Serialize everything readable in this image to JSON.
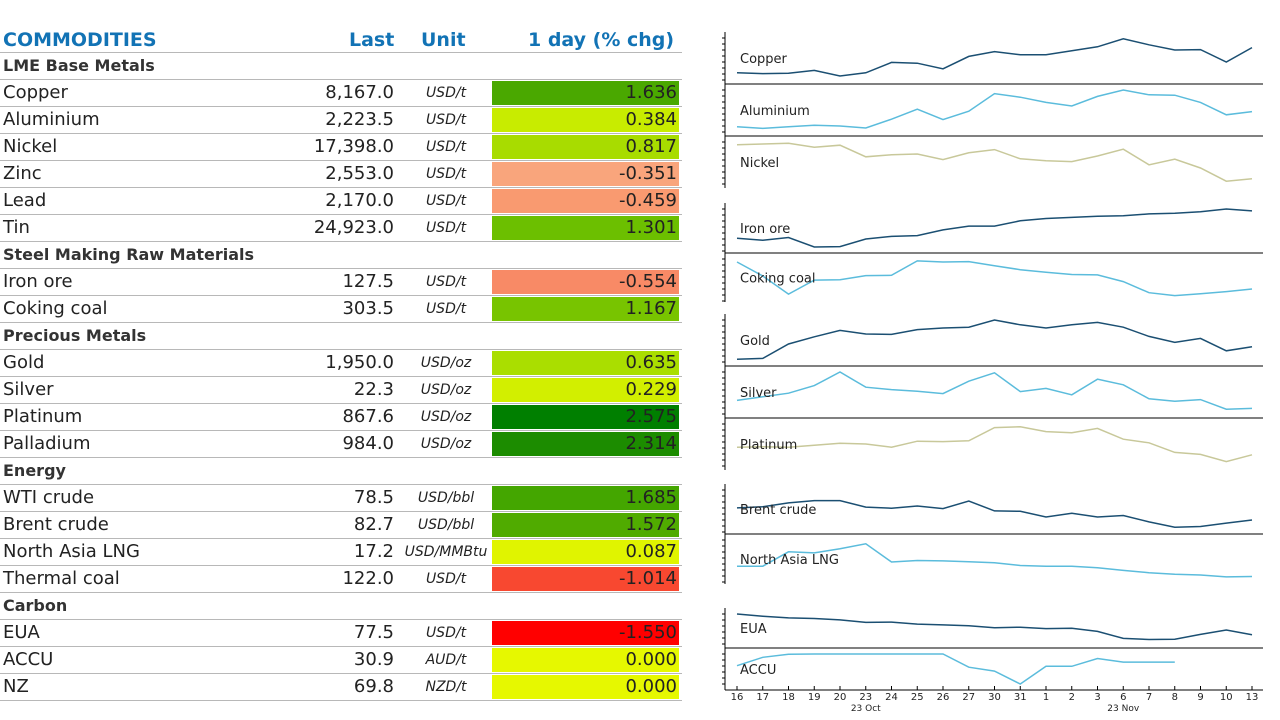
{
  "header": {
    "title": "COMMODITIES",
    "col_last": "Last",
    "col_unit": "Unit",
    "col_chg": "1 day (% chg)"
  },
  "sections": [
    {
      "title": "LME Base Metals",
      "rows": [
        {
          "name": "Copper",
          "last": "8,167.0",
          "unit": "USD/t",
          "chg": "1.636",
          "color": "#4aa800"
        },
        {
          "name": "Aluminium",
          "last": "2,223.5",
          "unit": "USD/t",
          "chg": "0.384",
          "color": "#c8ec00"
        },
        {
          "name": "Nickel",
          "last": "17,398.0",
          "unit": "USD/t",
          "chg": "0.817",
          "color": "#a8dc00"
        },
        {
          "name": "Zinc",
          "last": "2,553.0",
          "unit": "USD/t",
          "chg": "-0.351",
          "color": "#f9a57c"
        },
        {
          "name": "Lead",
          "last": "2,170.0",
          "unit": "USD/t",
          "chg": "-0.459",
          "color": "#f99a70"
        },
        {
          "name": "Tin",
          "last": "24,923.0",
          "unit": "USD/t",
          "chg": "1.301",
          "color": "#6cbf00"
        }
      ]
    },
    {
      "title": "Steel Making Raw Materials",
      "rows": [
        {
          "name": "Iron ore",
          "last": "127.5",
          "unit": "USD/t",
          "chg": "-0.554",
          "color": "#f88a66"
        },
        {
          "name": "Coking coal",
          "last": "303.5",
          "unit": "USD/t",
          "chg": "1.167",
          "color": "#78c400"
        }
      ]
    },
    {
      "title": "Precious Metals",
      "rows": [
        {
          "name": "Gold",
          "last": "1,950.0",
          "unit": "USD/oz",
          "chg": "0.635",
          "color": "#aade00"
        },
        {
          "name": "Silver",
          "last": "22.3",
          "unit": "USD/oz",
          "chg": "0.229",
          "color": "#d2ef00"
        },
        {
          "name": "Platinum",
          "last": "867.6",
          "unit": "USD/oz",
          "chg": "2.575",
          "color": "#007f00"
        },
        {
          "name": "Palladium",
          "last": "984.0",
          "unit": "USD/oz",
          "chg": "2.314",
          "color": "#1c8c00"
        }
      ]
    },
    {
      "title": "Energy",
      "rows": [
        {
          "name": "WTI crude",
          "last": "78.5",
          "unit": "USD/bbl",
          "chg": "1.685",
          "color": "#44a600"
        },
        {
          "name": "Brent crude",
          "last": "82.7",
          "unit": "USD/bbl",
          "chg": "1.572",
          "color": "#50ab00"
        },
        {
          "name": "North Asia LNG",
          "last": "17.2",
          "unit": "USD/MMBtu",
          "chg": "0.087",
          "color": "#e0f400"
        },
        {
          "name": "Thermal coal",
          "last": "122.0",
          "unit": "USD/t",
          "chg": "-1.014",
          "color": "#f84830"
        }
      ]
    },
    {
      "title": "Carbon",
      "rows": [
        {
          "name": "EUA",
          "last": "77.5",
          "unit": "USD/t",
          "chg": "-1.550",
          "color": "#ff0000"
        },
        {
          "name": "ACCU",
          "last": "30.9",
          "unit": "AUD/t",
          "chg": "0.000",
          "color": "#e6f800"
        },
        {
          "name": "NZ",
          "last": "69.8",
          "unit": "NZD/t",
          "chg": "0.000",
          "color": "#e6f800"
        }
      ]
    }
  ],
  "chart_data": {
    "type": "line",
    "x": [
      "16",
      "17",
      "18",
      "19",
      "20",
      "23",
      "24",
      "25",
      "26",
      "27",
      "30",
      "31",
      "1",
      "2",
      "3",
      "6",
      "7",
      "8",
      "9",
      "10",
      "13"
    ],
    "x_groups": [
      "23 Oct",
      "23 Nov"
    ],
    "colors": {
      "dark": "#1b4f72",
      "light": "#5bbcdc",
      "khaki": "#c8c89a"
    },
    "groups": [
      [
        {
          "name": "Copper",
          "color": "dark",
          "values": [
            0.13,
            0.11,
            0.12,
            0.19,
            0.05,
            0.13,
            0.39,
            0.37,
            0.23,
            0.54,
            0.66,
            0.58,
            0.58,
            0.68,
            0.78,
            0.98,
            0.83,
            0.7,
            0.71,
            0.4,
            0.76
          ]
        },
        {
          "name": "Aluminium",
          "color": "light",
          "values": [
            0.08,
            0.04,
            0.08,
            0.12,
            0.1,
            0.05,
            0.27,
            0.52,
            0.26,
            0.47,
            0.91,
            0.82,
            0.69,
            0.6,
            0.84,
            1.0,
            0.88,
            0.87,
            0.69,
            0.38,
            0.46
          ]
        },
        {
          "name": "Nickel",
          "color": "khaki",
          "values": [
            0.93,
            0.95,
            0.97,
            0.87,
            0.92,
            0.63,
            0.68,
            0.7,
            0.56,
            0.73,
            0.81,
            0.58,
            0.53,
            0.51,
            0.65,
            0.82,
            0.43,
            0.57,
            0.35,
            0.02,
            0.08
          ]
        }
      ],
      [
        {
          "name": "Iron ore",
          "color": "dark",
          "values": [
            0.23,
            0.18,
            0.25,
            0.0,
            0.01,
            0.21,
            0.28,
            0.3,
            0.45,
            0.55,
            0.55,
            0.69,
            0.75,
            0.78,
            0.81,
            0.82,
            0.87,
            0.89,
            0.93,
            1.0,
            0.95
          ]
        },
        {
          "name": "Coking coal",
          "color": "light",
          "values": [
            0.92,
            0.54,
            0.05,
            0.43,
            0.44,
            0.55,
            0.56,
            0.95,
            0.92,
            0.93,
            0.82,
            0.71,
            0.64,
            0.58,
            0.57,
            0.39,
            0.09,
            0.01,
            0.06,
            0.12,
            0.19
          ]
        }
      ],
      [
        {
          "name": "Gold",
          "color": "dark",
          "values": [
            0.02,
            0.04,
            0.4,
            0.58,
            0.74,
            0.65,
            0.64,
            0.76,
            0.8,
            0.82,
            1.0,
            0.88,
            0.8,
            0.88,
            0.94,
            0.82,
            0.59,
            0.44,
            0.54,
            0.23,
            0.33
          ]
        },
        {
          "name": "Silver",
          "color": "light",
          "values": [
            0.29,
            0.38,
            0.47,
            0.66,
            1.0,
            0.62,
            0.56,
            0.52,
            0.46,
            0.77,
            0.98,
            0.51,
            0.59,
            0.43,
            0.82,
            0.68,
            0.33,
            0.27,
            0.31,
            0.07,
            0.09
          ]
        },
        {
          "name": "Platinum",
          "color": "khaki",
          "values": [
            0.42,
            0.43,
            0.42,
            0.47,
            0.52,
            0.5,
            0.42,
            0.57,
            0.56,
            0.58,
            0.91,
            0.93,
            0.81,
            0.78,
            0.89,
            0.62,
            0.53,
            0.29,
            0.24,
            0.06,
            0.23
          ]
        }
      ],
      [
        {
          "name": "Brent crude",
          "color": "dark",
          "values": [
            0.53,
            0.56,
            0.66,
            0.72,
            0.72,
            0.55,
            0.52,
            0.58,
            0.51,
            0.71,
            0.45,
            0.44,
            0.29,
            0.39,
            0.29,
            0.33,
            0.16,
            0.02,
            0.04,
            0.13,
            0.21
          ]
        },
        {
          "name": "North Asia LNG",
          "color": "light",
          "values": [
            0.31,
            0.31,
            0.69,
            0.66,
            0.77,
            0.9,
            0.42,
            0.46,
            0.45,
            0.43,
            0.4,
            0.33,
            0.31,
            0.31,
            0.27,
            0.2,
            0.14,
            0.1,
            0.08,
            0.03,
            0.04
          ]
        }
      ],
      [
        {
          "name": "EUA",
          "color": "dark",
          "values": [
            1.0,
            0.92,
            0.86,
            0.84,
            0.79,
            0.7,
            0.71,
            0.64,
            0.61,
            0.58,
            0.51,
            0.53,
            0.48,
            0.49,
            0.38,
            0.13,
            0.09,
            0.1,
            0.27,
            0.43,
            0.26
          ]
        },
        {
          "name": "ACCU",
          "color": "light",
          "values": [
            0.61,
            0.89,
            0.99,
            1.0,
            1.0,
            1.0,
            1.0,
            1.0,
            1.0,
            0.56,
            0.43,
            0.0,
            0.59,
            0.59,
            0.85,
            0.73,
            0.73,
            0.73,
            null,
            null,
            null
          ]
        }
      ]
    ]
  }
}
